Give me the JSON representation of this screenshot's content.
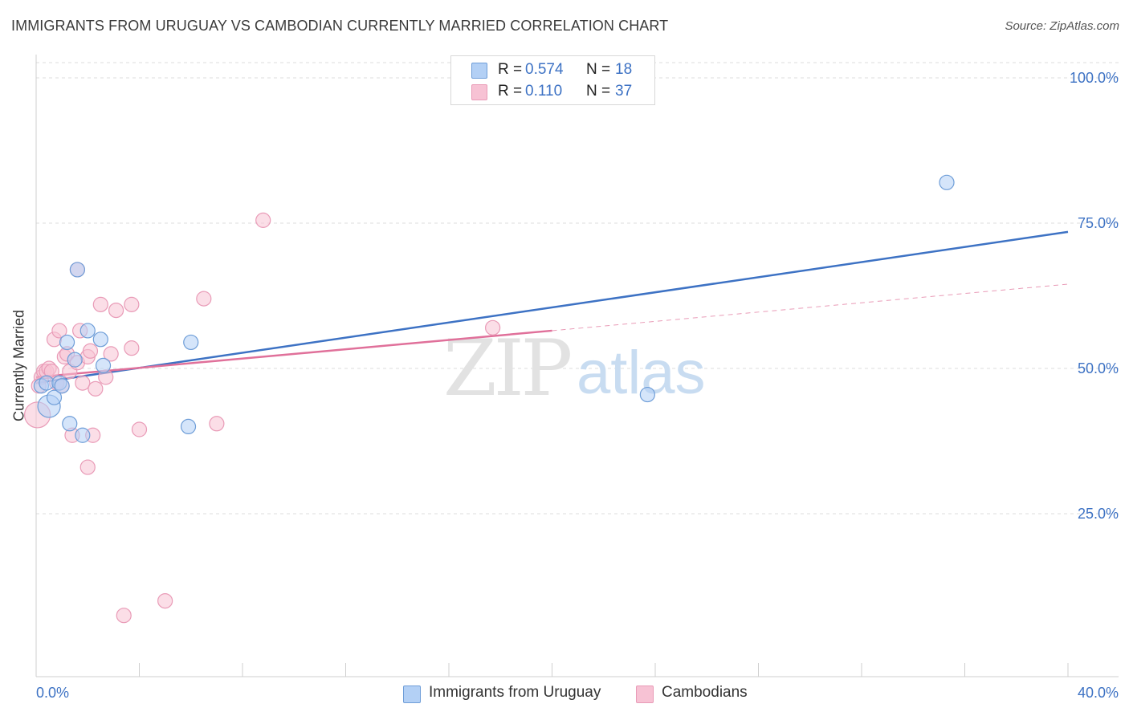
{
  "title": "IMMIGRANTS FROM URUGUAY VS CAMBODIAN CURRENTLY MARRIED CORRELATION CHART",
  "source": "Source: ZipAtlas.com",
  "watermark": {
    "zip": "ZIP",
    "atlas": "atlas"
  },
  "colors": {
    "blue": "#3d72c4",
    "blue_fill": "#b3d0f5",
    "pink": "#e0709a",
    "pink_fill": "#f7c2d4",
    "grid": "#dddddd"
  },
  "legend_top": {
    "rows": [
      {
        "r_label": "R =",
        "r_value": "0.574",
        "n_label": "N =",
        "n_value": "18",
        "series": "blue"
      },
      {
        "r_label": "R =",
        "r_value": "0.110",
        "n_label": "N =",
        "n_value": "37",
        "series": "pink"
      }
    ]
  },
  "chart_data": {
    "type": "scatter",
    "title": "IMMIGRANTS FROM URUGUAY VS CAMBODIAN CURRENTLY MARRIED CORRELATION CHART",
    "xlabel": "",
    "ylabel": "Currently Married",
    "xlim": [
      0,
      40
    ],
    "ylim": [
      0,
      105
    ],
    "x_tick_labels": [
      "0.0%",
      "40.0%"
    ],
    "y_ticks": [
      25,
      50,
      75,
      100
    ],
    "y_tick_labels": [
      "25.0%",
      "50.0%",
      "75.0%",
      "100.0%"
    ],
    "grid": true,
    "legend_position": "bottom",
    "series": [
      {
        "name": "Immigrants from Uruguay",
        "color": "#3d72c4",
        "points": [
          [
            0.2,
            47.0
          ],
          [
            0.4,
            47.5
          ],
          [
            0.5,
            43.5
          ],
          [
            0.7,
            45.0
          ],
          [
            0.9,
            47.5
          ],
          [
            1.0,
            47.0
          ],
          [
            1.2,
            54.5
          ],
          [
            1.3,
            40.5
          ],
          [
            1.5,
            51.5
          ],
          [
            1.6,
            67.0
          ],
          [
            1.8,
            38.5
          ],
          [
            2.0,
            56.5
          ],
          [
            2.5,
            55.0
          ],
          [
            2.6,
            50.5
          ],
          [
            5.9,
            40.0
          ],
          [
            6.0,
            54.5
          ],
          [
            23.7,
            45.5
          ],
          [
            35.3,
            82.0
          ]
        ],
        "trend": {
          "x": [
            0,
            40
          ],
          "y": [
            47.5,
            73.5
          ]
        }
      },
      {
        "name": "Cambodians",
        "color": "#e0709a",
        "points": [
          [
            0.05,
            42.0
          ],
          [
            0.2,
            48.5
          ],
          [
            0.3,
            49.5
          ],
          [
            0.4,
            49.5
          ],
          [
            0.5,
            50.0
          ],
          [
            0.6,
            49.5
          ],
          [
            0.7,
            55.0
          ],
          [
            0.8,
            47.5
          ],
          [
            0.9,
            56.5
          ],
          [
            1.0,
            47.0
          ],
          [
            1.1,
            52.0
          ],
          [
            1.2,
            52.5
          ],
          [
            1.3,
            49.5
          ],
          [
            1.4,
            38.5
          ],
          [
            1.6,
            51.0
          ],
          [
            1.6,
            67.0
          ],
          [
            1.7,
            56.5
          ],
          [
            1.8,
            47.5
          ],
          [
            2.0,
            52.0
          ],
          [
            2.1,
            53.0
          ],
          [
            2.2,
            38.5
          ],
          [
            2.3,
            46.5
          ],
          [
            2.5,
            61.0
          ],
          [
            2.7,
            48.5
          ],
          [
            2.9,
            52.5
          ],
          [
            2.0,
            33.0
          ],
          [
            3.1,
            60.0
          ],
          [
            3.4,
            7.5
          ],
          [
            3.7,
            61.0
          ],
          [
            3.7,
            53.5
          ],
          [
            4.0,
            39.5
          ],
          [
            5.0,
            10.0
          ],
          [
            6.5,
            62.0
          ],
          [
            7.0,
            40.5
          ],
          [
            8.8,
            75.5
          ],
          [
            17.7,
            57.0
          ],
          [
            0.1,
            47.0
          ]
        ],
        "trend": {
          "x": [
            0,
            20
          ],
          "y": [
            48.5,
            56.5
          ]
        },
        "trend_extrapolated": {
          "x": [
            20,
            40
          ],
          "y": [
            56.5,
            64.5
          ]
        }
      }
    ]
  }
}
